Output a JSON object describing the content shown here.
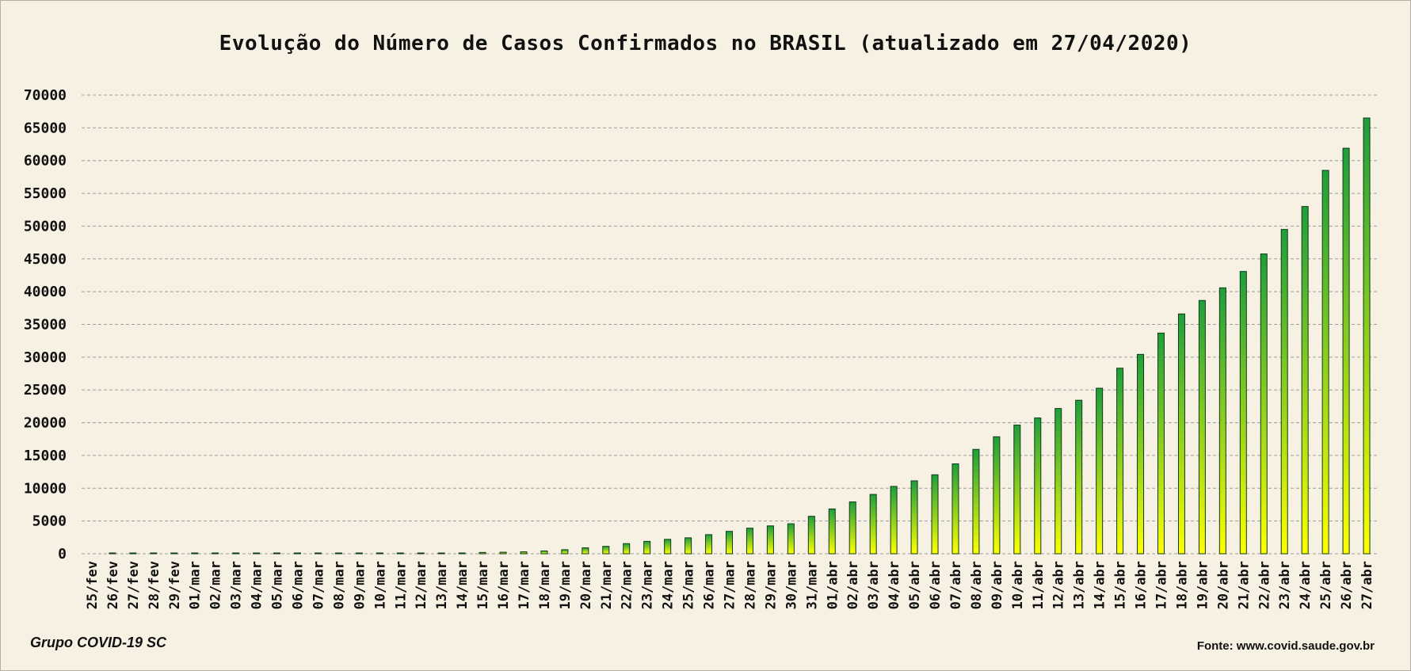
{
  "chart_data": {
    "type": "bar",
    "title": "Evolução do Número de Casos Confirmados no BRASIL (atualizado em 27/04/2020)",
    "xlabel": "",
    "ylabel": "",
    "ylim": [
      0,
      70000
    ],
    "yticks": [
      0,
      5000,
      10000,
      15000,
      20000,
      25000,
      30000,
      35000,
      40000,
      45000,
      50000,
      55000,
      60000,
      65000,
      70000
    ],
    "grid": true,
    "categories": [
      "25/fev",
      "26/fev",
      "27/fev",
      "28/fev",
      "29/fev",
      "01/mar",
      "02/mar",
      "03/mar",
      "04/mar",
      "05/mar",
      "06/mar",
      "07/mar",
      "08/mar",
      "09/mar",
      "10/mar",
      "11/mar",
      "12/mar",
      "13/mar",
      "14/mar",
      "15/mar",
      "16/mar",
      "17/mar",
      "18/mar",
      "19/mar",
      "20/mar",
      "21/mar",
      "22/mar",
      "23/mar",
      "24/mar",
      "25/mar",
      "26/mar",
      "27/mar",
      "28/mar",
      "29/mar",
      "30/mar",
      "31/mar",
      "01/abr",
      "02/abr",
      "03/abr",
      "04/abr",
      "05/abr",
      "06/abr",
      "07/abr",
      "08/abr",
      "09/abr",
      "10/abr",
      "11/abr",
      "12/abr",
      "13/abr",
      "14/abr",
      "15/abr",
      "16/abr",
      "17/abr",
      "18/abr",
      "19/abr",
      "20/abr",
      "21/abr",
      "22/abr",
      "23/abr",
      "24/abr",
      "25/abr",
      "26/abr",
      "27/abr"
    ],
    "values": [
      0,
      1,
      1,
      1,
      1,
      2,
      2,
      2,
      3,
      8,
      13,
      19,
      25,
      25,
      34,
      52,
      77,
      98,
      121,
      200,
      234,
      291,
      428,
      621,
      904,
      1128,
      1546,
      1891,
      2201,
      2433,
      2915,
      3417,
      3904,
      4256,
      4579,
      5717,
      6836,
      7910,
      9056,
      10278,
      11130,
      12056,
      13717,
      15927,
      17857,
      19638,
      20727,
      22169,
      23430,
      25262,
      28320,
      30425,
      33682,
      36599,
      38654,
      40581,
      43079,
      45757,
      49492,
      52995,
      58509,
      61888,
      66501
    ]
  },
  "colors": {
    "background": "#F7F1E3",
    "bar_top": "#1E9E3C",
    "bar_bottom": "#FFFF00",
    "bar_outline": "#0F3A16",
    "grid": "#9e9e9e"
  },
  "footer": {
    "credit": "Grupo COVID-19 SC",
    "source": "Fonte: www.covid.saude.gov.br"
  }
}
